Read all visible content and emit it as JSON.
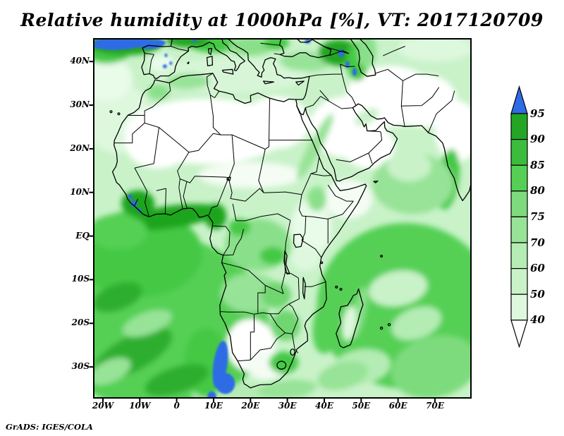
{
  "header": {
    "title": "Relative humidity at 1000hPa [%], VT: 2017120709"
  },
  "footer": {
    "credit": "GrADS: IGES/COLA"
  },
  "chart_data": {
    "type": "heatmap",
    "title": "Relative humidity at 1000hPa [%], VT: 2017120709",
    "variable": "Relative humidity",
    "pressure_level": "1000hPa",
    "units": "%",
    "valid_time": "2017120709",
    "x_ticks": [
      "20W",
      "10W",
      "0",
      "10E",
      "20E",
      "30E",
      "40E",
      "50E",
      "60E",
      "70E"
    ],
    "y_ticks": [
      "40N",
      "30N",
      "20N",
      "10N",
      "EQ",
      "10S",
      "20S",
      "30S"
    ],
    "xlim_lon_deg": [
      -22.5,
      79.7
    ],
    "ylim_lat_deg": [
      -37.1,
      45.2
    ],
    "grid": false,
    "legend_position": "right",
    "colorbar": {
      "labels": [
        "95",
        "90",
        "85",
        "80",
        "75",
        "70",
        "60",
        "50",
        "40"
      ],
      "levels": [
        95,
        90,
        85,
        80,
        75,
        70,
        60,
        50,
        40
      ],
      "segment_colors_top_to_bottom": [
        "#2e6ce6",
        "#23a623",
        "#3cbc3c",
        "#55d055",
        "#7ddb7d",
        "#97e397",
        "#b4ecb4",
        "#c9f2c9",
        "#def8de",
        "#ffffff"
      ],
      "over_color": "#2e6ce6",
      "under_color": "#ffffff"
    },
    "field_summary": [
      {
        "region": "Sahara, Arabian Peninsula, Iran-Pakistan interior",
        "humidity_pct": "<40 (white)"
      },
      {
        "region": "Gulf of Guinea coast (Guinea to Nigeria)",
        "humidity_pct": "85-95 with >95 pockets (blue specks)"
      },
      {
        "region": "South Atlantic off Namibia / Cape coast",
        "humidity_pct": ">95 (blue patch)"
      },
      {
        "region": "Bay of Biscay / NE Atlantic top-left",
        "humidity_pct": ">95 band with 90-95 fringe"
      },
      {
        "region": "Caucasus-Caspian and NW Iran",
        "humidity_pct": "85-95 with >95 specks"
      },
      {
        "region": "Congo Basin and Angola-Zambia",
        "humidity_pct": "70-85"
      },
      {
        "region": "Southern Africa interior (Namibia-Botswana-Karoo)",
        "humidity_pct": "<40-50"
      },
      {
        "region": "Tropical and southern oceans",
        "humidity_pct": "70-85"
      },
      {
        "region": "Mediterranean and East Africa",
        "humidity_pct": "50-70"
      }
    ],
    "credit": "GrADS: IGES/COLA"
  }
}
